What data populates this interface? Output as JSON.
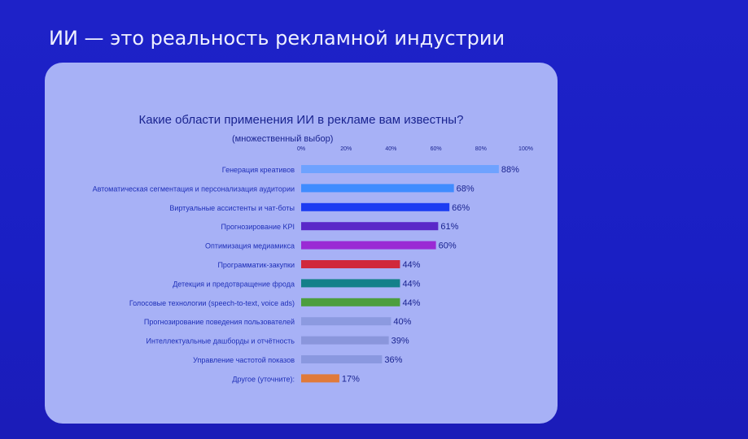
{
  "slide_title": "ИИ — это реальность рекламной индустрии",
  "chart_data": {
    "type": "bar",
    "orientation": "horizontal",
    "title": "Какие области применения ИИ в рекламе вам известны?",
    "subtitle": "(множественный выбор)",
    "xlim": [
      0,
      100
    ],
    "ticks": [
      "0%",
      "20%",
      "40%",
      "60%",
      "80%",
      "100%"
    ],
    "categories": [
      "Генерация креативов",
      "Автоматическая сегментация и персонализация аудитории",
      "Виртуальные ассистенты и чат-боты",
      "Прогнозирование KPI",
      "Оптимизация медиамикса",
      "Программатик-закупки",
      "Детекция и предотвращение фрода",
      "Голосовые технологии (speech-to-text, voice ads)",
      "Прогнозирование поведения пользователей",
      "Интеллектуальные дашборды и отчётность",
      "Управление частотой показов",
      "Другое (уточните):"
    ],
    "values": [
      88,
      68,
      66,
      61,
      60,
      44,
      44,
      44,
      40,
      39,
      36,
      17
    ],
    "labels": [
      "88%",
      "68%",
      "66%",
      "61%",
      "60%",
      "44%",
      "44%",
      "44%",
      "40%",
      "39%",
      "36%",
      "17%"
    ],
    "colors": [
      "#6ea2ff",
      "#3f8cff",
      "#1c3cf2",
      "#5a28c8",
      "#9a2ad4",
      "#d0283c",
      "#13808a",
      "#4c9e3e",
      "#8c9ae0",
      "#8a96dc",
      "#8a98e0",
      "#e07a3a"
    ]
  }
}
